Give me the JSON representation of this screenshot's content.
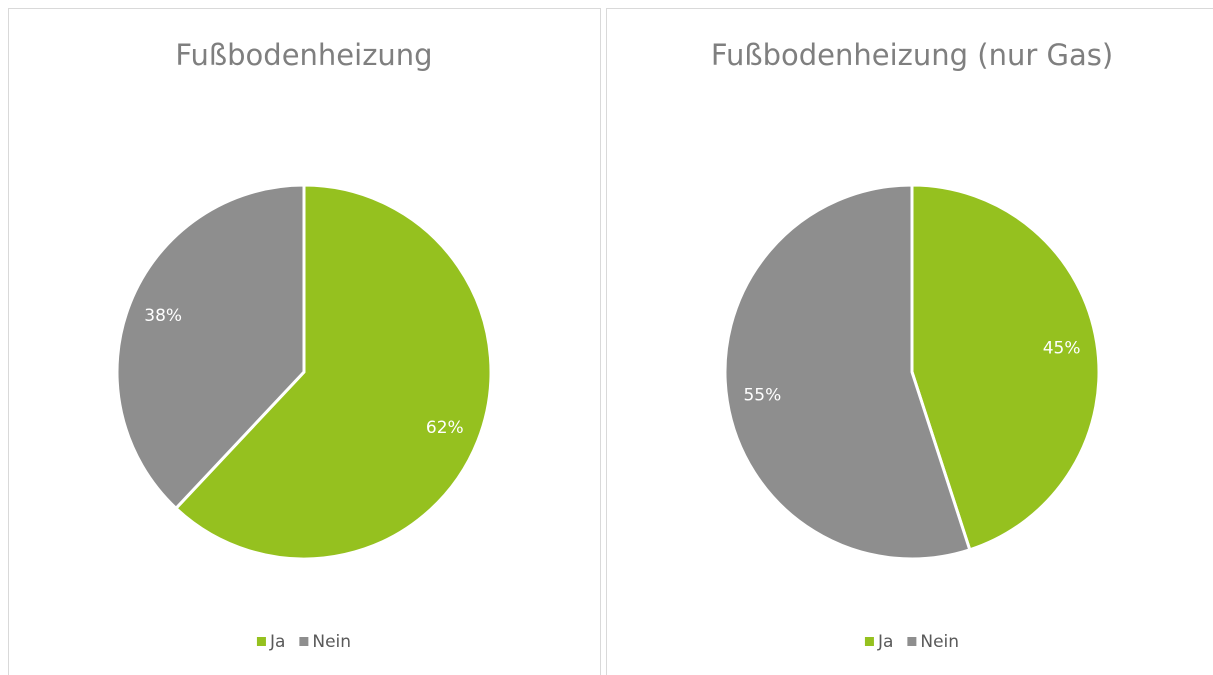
{
  "chart_data": [
    {
      "type": "pie",
      "title": "Fußbodenheizung",
      "categories": [
        "Ja",
        "Nein"
      ],
      "values": [
        62,
        38
      ],
      "value_labels": [
        "62%",
        "38%"
      ],
      "colors": [
        "#95c11f",
        "#8e8e8e"
      ],
      "legend": "bottom"
    },
    {
      "type": "pie",
      "title": "Fußbodenheizung (nur Gas)",
      "categories": [
        "Ja",
        "Nein"
      ],
      "values": [
        45,
        55
      ],
      "value_labels": [
        "45%",
        "55%"
      ],
      "colors": [
        "#95c11f",
        "#8e8e8e"
      ],
      "legend": "bottom"
    }
  ]
}
